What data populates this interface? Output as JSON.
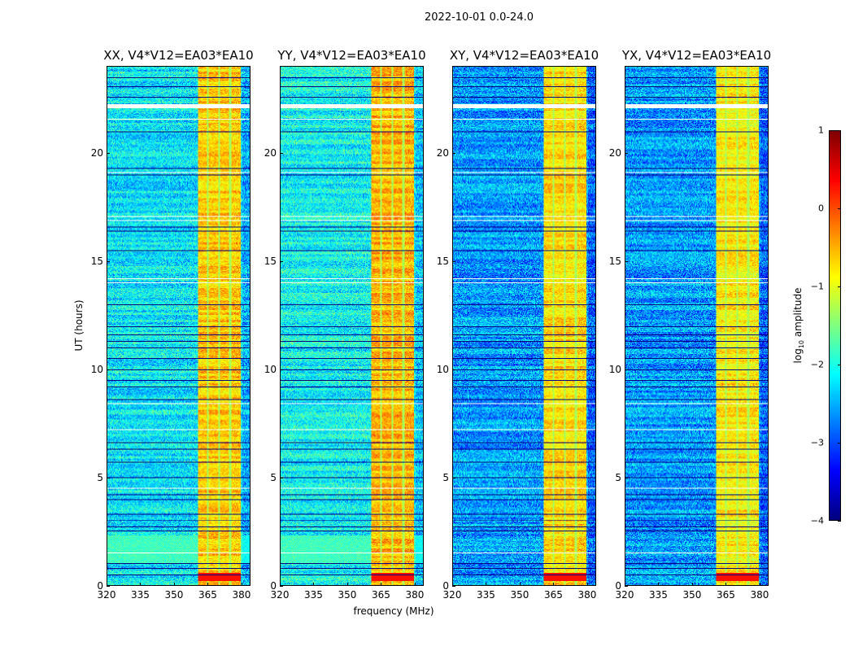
{
  "chart_data": {
    "type": "heatmap",
    "title": "2022-10-01 0.0-24.0",
    "xlabel": "frequency (MHz)",
    "ylabel": "UT (hours)",
    "xlim": [
      320,
      384
    ],
    "ylim": [
      0,
      24
    ],
    "xticks": [
      "320",
      "335",
      "350",
      "365",
      "380"
    ],
    "yticks": [
      "0",
      "5",
      "10",
      "15",
      "20"
    ],
    "panels": [
      {
        "title": "XX, V4*V12=EA03*EA10",
        "base_log_amp": -2.2,
        "band_log_amp": -0.6
      },
      {
        "title": "YY, V4*V12=EA03*EA10",
        "base_log_amp": -2.1,
        "band_log_amp": -0.5
      },
      {
        "title": "XY, V4*V12=EA03*EA10",
        "base_log_amp": -2.6,
        "band_log_amp": -0.7
      },
      {
        "title": "YX, V4*V12=EA03*EA10",
        "base_log_amp": -2.6,
        "band_log_amp": -0.8
      }
    ],
    "rfi_band_mhz": [
      360.5,
      380
    ],
    "band_stripes_mhz": [
      365,
      370,
      375
    ],
    "flagged_hours": [
      22.2,
      14.0,
      14.2,
      8.4,
      7.2,
      4.5,
      1.5,
      16.9,
      17.1,
      19.1,
      21.6
    ],
    "low_amplitude_hours": [
      0.5,
      0.8,
      1.0,
      2.5,
      2.7,
      3.0,
      3.3,
      4.0,
      4.2,
      5.0,
      5.7,
      6.3,
      6.6,
      8.6,
      9.2,
      9.5,
      10.0,
      10.5,
      11.0,
      11.3,
      11.6,
      12.0,
      13.0,
      15.5,
      16.4,
      16.6,
      19.0,
      19.3,
      21.0,
      22.6,
      23.1,
      23.5
    ],
    "colorbar": {
      "label_main": "log",
      "label_sub": "10",
      "label_rest": " amplitude",
      "range": [
        -4,
        1
      ],
      "ticks": [
        "1",
        "0",
        "−1",
        "−2",
        "−3",
        "−4"
      ],
      "colormap": "jet"
    }
  }
}
